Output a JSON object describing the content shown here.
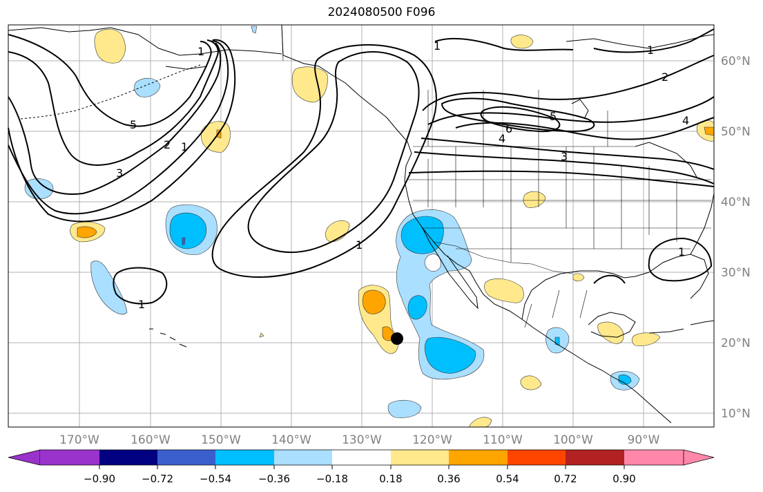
{
  "title": "2024080500 F096",
  "lon_labels": [
    "170°W",
    "160°W",
    "150°W",
    "140°W",
    "130°W",
    "120°W",
    "110°W",
    "100°W",
    "90°W"
  ],
  "lat_labels": [
    "60°N",
    "50°N",
    "40°N",
    "30°N",
    "20°N",
    "10°N"
  ],
  "colorbar": {
    "tick_labels": [
      "−0.90",
      "−0.72",
      "−0.54",
      "−0.36",
      "−0.18",
      "0.18",
      "0.36",
      "0.54",
      "0.72",
      "0.90"
    ],
    "colors": [
      "#9933cc",
      "#000080",
      "#3a5fcd",
      "#00bfff",
      "#aadfff",
      "#ffffff",
      "#ffe98c",
      "#ffa500",
      "#ff4500",
      "#b22222",
      "#ff88aa"
    ]
  },
  "contour_labels": [
    "1",
    "1",
    "1",
    "1",
    "1",
    "1",
    "1",
    "2",
    "2",
    "3",
    "3",
    "4",
    "4",
    "5",
    "5",
    "6"
  ],
  "fill_colors": {
    "light_blue": "#aadfff",
    "blue": "#00bfff",
    "dark_blue": "#3a5fcd",
    "light_yellow": "#ffe98c",
    "orange": "#ffa500"
  },
  "marker_color": "#000000"
}
